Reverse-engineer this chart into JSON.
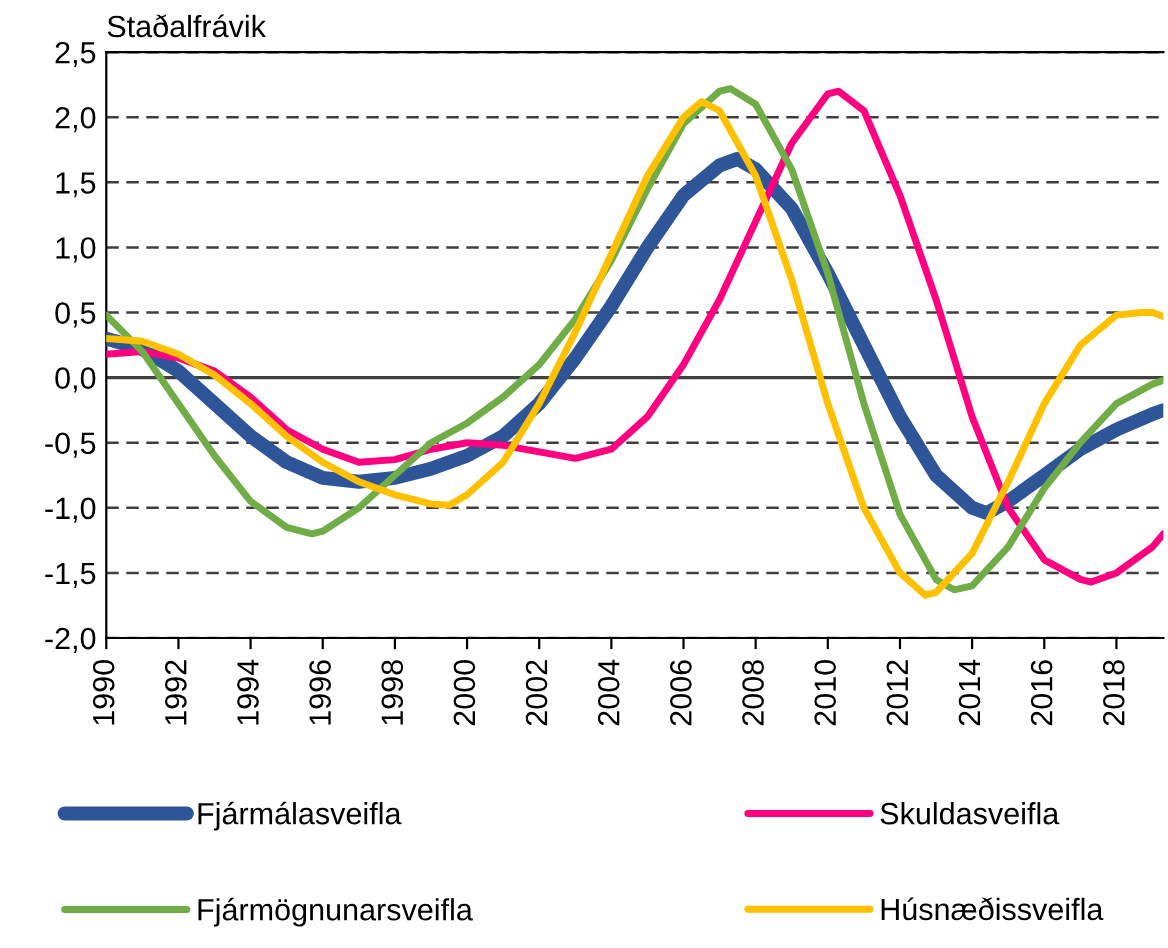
{
  "chart_data": {
    "type": "line",
    "ylabel": "Staðalfrávik",
    "xlim": [
      1990,
      2019.3
    ],
    "xticks": [
      1990,
      1992,
      1994,
      1996,
      1998,
      2000,
      2002,
      2004,
      2006,
      2008,
      2010,
      2012,
      2014,
      2016,
      2018
    ],
    "ylim": [
      -2.0,
      2.5
    ],
    "yticks": [
      {
        "value": -2.0,
        "label": "-2,0"
      },
      {
        "value": -1.5,
        "label": "-1,5"
      },
      {
        "value": -1.0,
        "label": "-1,0"
      },
      {
        "value": -0.5,
        "label": "-0,5"
      },
      {
        "value": 0.0,
        "label": "0,0"
      },
      {
        "value": 0.5,
        "label": "0,5"
      },
      {
        "value": 1.0,
        "label": "1,0"
      },
      {
        "value": 1.5,
        "label": "1,5"
      },
      {
        "value": 2.0,
        "label": "2,0"
      },
      {
        "value": 2.5,
        "label": "2,5"
      }
    ],
    "grid": "y",
    "legend": "bottom",
    "marker": "none",
    "line_style": "solid",
    "ref_lines": [
      {
        "axis": "y",
        "value": 0,
        "color": "#404040",
        "line_style": "solid"
      }
    ],
    "series": [
      {
        "name": "Fjármálasveifla",
        "color": "#2e5597",
        "x": [
          1990,
          1991,
          1992,
          1993,
          1994,
          1995,
          1996,
          1997,
          1998,
          1999,
          2000,
          2001,
          2002,
          2003,
          2004,
          2005,
          2006,
          2007,
          2007.5,
          2008,
          2009,
          2010,
          2011,
          2012,
          2013,
          2014,
          2014.4,
          2015,
          2016,
          2017,
          2018,
          2019,
          2019.3
        ],
        "values": [
          0.3,
          0.22,
          0.05,
          -0.2,
          -0.45,
          -0.65,
          -0.77,
          -0.8,
          -0.77,
          -0.7,
          -0.6,
          -0.45,
          -0.2,
          0.15,
          0.55,
          1.0,
          1.4,
          1.63,
          1.68,
          1.6,
          1.3,
          0.8,
          0.25,
          -0.3,
          -0.75,
          -1.0,
          -1.04,
          -0.95,
          -0.75,
          -0.55,
          -0.4,
          -0.28,
          -0.25
        ]
      },
      {
        "name": "Skuldasveifla",
        "color": "#ff0080",
        "x": [
          1990,
          1991,
          1992,
          1993,
          1994,
          1995,
          1996,
          1997,
          1998,
          1999,
          2000,
          2001,
          2002,
          2003,
          2004,
          2005,
          2006,
          2007,
          2008,
          2009,
          2010,
          2010.3,
          2011,
          2012,
          2013,
          2014,
          2015,
          2016,
          2017,
          2017.3,
          2018,
          2019,
          2019.3
        ],
        "values": [
          0.18,
          0.2,
          0.15,
          0.05,
          -0.15,
          -0.4,
          -0.55,
          -0.65,
          -0.63,
          -0.55,
          -0.5,
          -0.52,
          -0.57,
          -0.62,
          -0.55,
          -0.3,
          0.1,
          0.6,
          1.2,
          1.8,
          2.18,
          2.2,
          2.05,
          1.4,
          0.6,
          -0.3,
          -1.0,
          -1.4,
          -1.55,
          -1.57,
          -1.5,
          -1.3,
          -1.2
        ]
      },
      {
        "name": "Fjármögnunarsveifla",
        "color": "#70ad47",
        "x": [
          1990,
          1991,
          1992,
          1993,
          1994,
          1995,
          1995.7,
          1996,
          1997,
          1998,
          1999,
          2000,
          2001,
          2002,
          2003,
          2004,
          2005,
          2006,
          2007,
          2007.3,
          2008,
          2009,
          2010,
          2011,
          2012,
          2013,
          2013.5,
          2014,
          2015,
          2016,
          2017,
          2018,
          2019,
          2019.3
        ],
        "values": [
          0.48,
          0.2,
          -0.2,
          -0.6,
          -0.95,
          -1.15,
          -1.2,
          -1.18,
          -1.0,
          -0.75,
          -0.5,
          -0.35,
          -0.15,
          0.1,
          0.45,
          0.9,
          1.45,
          1.95,
          2.2,
          2.22,
          2.1,
          1.6,
          0.8,
          -0.2,
          -1.05,
          -1.55,
          -1.63,
          -1.6,
          -1.3,
          -0.85,
          -0.5,
          -0.2,
          -0.05,
          -0.02
        ]
      },
      {
        "name": "Húsnæðissveifla",
        "color": "#ffc000",
        "x": [
          1990,
          1991,
          1992,
          1993,
          1994,
          1995,
          1996,
          1997,
          1998,
          1999,
          1999.5,
          2000,
          2001,
          2002,
          2003,
          2004,
          2005,
          2006,
          2006.5,
          2007,
          2008,
          2009,
          2010,
          2011,
          2012,
          2012.7,
          2013,
          2014,
          2015,
          2016,
          2017,
          2018,
          2018.7,
          2019,
          2019.3
        ],
        "values": [
          0.3,
          0.28,
          0.18,
          0.02,
          -0.2,
          -0.45,
          -0.65,
          -0.8,
          -0.9,
          -0.97,
          -0.98,
          -0.9,
          -0.65,
          -0.2,
          0.35,
          0.95,
          1.55,
          2.0,
          2.12,
          2.05,
          1.55,
          0.75,
          -0.2,
          -1.0,
          -1.5,
          -1.67,
          -1.65,
          -1.35,
          -0.8,
          -0.2,
          0.25,
          0.48,
          0.5,
          0.5,
          0.47
        ]
      }
    ]
  }
}
